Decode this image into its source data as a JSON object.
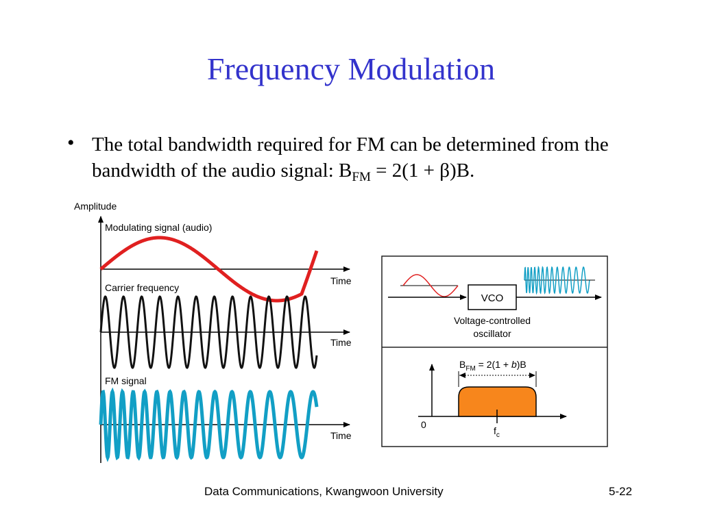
{
  "slide": {
    "title": "Frequency Modulation",
    "bullet_text": "The total bandwidth required for FM can be determined from the bandwidth of the audio signal: B",
    "bullet_sub": "FM",
    "bullet_tail": " = 2(1 + β)B."
  },
  "diagram": {
    "amplitude_label": "Amplitude",
    "modulating_label": "Modulating signal (audio)",
    "carrier_label": "Carrier frequency",
    "fm_label": "FM signal",
    "time_label": "Time",
    "vco_label": "VCO",
    "vco_caption_line1": "Voltage-controlled",
    "vco_caption_line2": "oscillator",
    "bfm_B": "B",
    "bfm_sub": "FM",
    "bfm_eq1": " = 2(1 + ",
    "bfm_b": "b",
    "bfm_eq2": ")B",
    "zero_label": "0",
    "fc_f": "f",
    "fc_sub": "c"
  },
  "colors": {
    "title": "#3333cc",
    "modulating": "#e02020",
    "carrier": "#111111",
    "fm": "#129fc5",
    "spectrum_fill": "#f7861c"
  },
  "footer": {
    "text": "Data Communications, Kwangwoon University",
    "page": "5-22"
  }
}
